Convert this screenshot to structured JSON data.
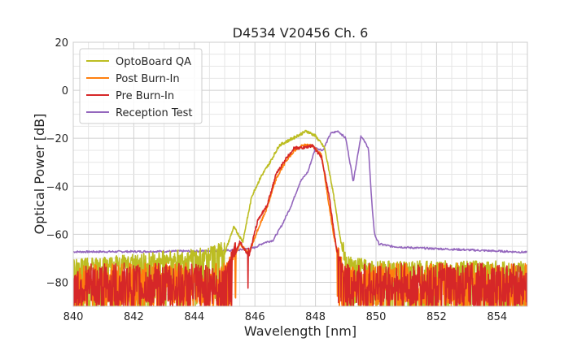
{
  "chart_data": {
    "type": "line",
    "title": "D4534 V20456 Ch. 6",
    "xlabel": "Wavelength [nm]",
    "ylabel": "Optical Power [dB]",
    "xlim": [
      840,
      855
    ],
    "ylim": [
      -90,
      20
    ],
    "xticks": [
      840,
      842,
      844,
      846,
      848,
      850,
      852,
      854
    ],
    "yticks": [
      -80,
      -60,
      -40,
      -20,
      0,
      20
    ],
    "xtick_labels": [
      "840",
      "842",
      "844",
      "846",
      "848",
      "850",
      "852",
      "854"
    ],
    "ytick_labels": [
      "−80",
      "−60",
      "−40",
      "−20",
      "0",
      "20"
    ],
    "grid": true,
    "grid_minor": true,
    "legend_position": "top-left",
    "legend": [
      "OptoBoard QA",
      "Post Burn-In",
      "Pre Burn-In",
      "Reception Test"
    ],
    "series": [
      {
        "name": "Reception Test",
        "color": "#9467bd",
        "x": [
          840,
          842,
          844,
          845,
          845.5,
          846,
          846.3,
          846.6,
          846.9,
          847.2,
          847.5,
          847.75,
          848.0,
          848.25,
          848.5,
          848.75,
          849.0,
          849.25,
          849.5,
          849.75,
          849.85,
          849.95,
          850.1,
          850.5,
          851,
          852,
          853,
          854,
          855
        ],
        "y": [
          -67.3,
          -67.2,
          -67.0,
          -66.8,
          -66.5,
          -65.5,
          -63.5,
          -62.5,
          -56,
          -48,
          -38,
          -34,
          -24,
          -25,
          -18,
          -17,
          -20,
          -38,
          -19,
          -24,
          -45,
          -60,
          -64,
          -65,
          -65.5,
          -66.0,
          -66.5,
          -67.0,
          -67.5
        ],
        "noise_floor": false
      },
      {
        "name": "OptoBoard QA",
        "color": "#bcbd22",
        "x": [
          840,
          841,
          842,
          843,
          844,
          844.5,
          845,
          845.3,
          845.6,
          845.9,
          846.2,
          846.5,
          846.8,
          847.1,
          847.4,
          847.7,
          848.0,
          848.3,
          848.55,
          848.8,
          849.0,
          849.5,
          850,
          851,
          852,
          853,
          854,
          855
        ],
        "y": [
          -75,
          -74,
          -73,
          -72,
          -71,
          -70,
          -68,
          -57,
          -63,
          -44,
          -36,
          -30,
          -23,
          -21,
          -19,
          -17,
          -19,
          -24,
          -40,
          -60,
          -74,
          -75,
          -76,
          -76,
          -76,
          -76,
          -76,
          -76
        ],
        "noise_floor": true
      },
      {
        "name": "Post Burn-In",
        "color": "#ff7f0e",
        "x": [
          840,
          842,
          844,
          845.0,
          845.3,
          845.5,
          845.8,
          846.1,
          846.4,
          846.7,
          847.0,
          847.3,
          847.6,
          847.9,
          848.2,
          848.45,
          848.6,
          848.75,
          849.0,
          850,
          852,
          854,
          855
        ],
        "y": [
          -80,
          -80,
          -80,
          -79,
          -70,
          -64,
          -68,
          -58,
          -49,
          -37,
          -30,
          -25,
          -23,
          -23,
          -27,
          -48,
          -60,
          -70,
          -80,
          -80,
          -80,
          -80,
          -80
        ],
        "noise_floor": true
      },
      {
        "name": "Pre Burn-In",
        "color": "#d62728",
        "x": [
          840,
          842,
          844,
          845.0,
          845.3,
          845.5,
          845.8,
          846.1,
          846.4,
          846.7,
          847.0,
          847.3,
          847.6,
          847.9,
          848.2,
          848.45,
          848.6,
          848.75,
          849.0,
          850,
          852,
          854,
          855
        ],
        "y": [
          -80,
          -80,
          -80,
          -79,
          -70,
          -63,
          -69,
          -54,
          -48,
          -35,
          -29,
          -24,
          -24,
          -23,
          -28,
          -44,
          -58,
          -70,
          -80,
          -80,
          -80,
          -80,
          -80
        ],
        "noise_floor": true
      }
    ]
  }
}
